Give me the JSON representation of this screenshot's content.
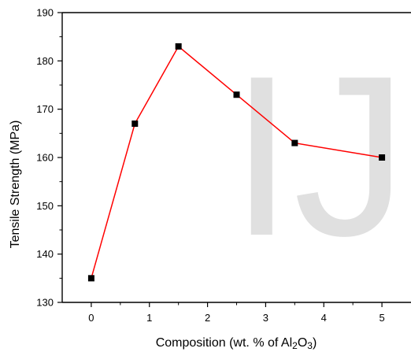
{
  "chart_data": {
    "type": "line",
    "title": "",
    "x_axis": {
      "label_parts": [
        {
          "text": "Composition (wt. % of Al",
          "sub": false
        },
        {
          "text": "2",
          "sub": true
        },
        {
          "text": "O",
          "sub": false
        },
        {
          "text": "3",
          "sub": true
        },
        {
          "text": ")",
          "sub": false
        }
      ],
      "range": [
        -0.5,
        5.5
      ],
      "ticks": [
        "0",
        "1",
        "2",
        "3",
        "4",
        "5"
      ],
      "minor_ticks": [
        0.5,
        1.5,
        2.5,
        3.5,
        4.5
      ]
    },
    "y_axis": {
      "label": "Tensile Strength (MPa)",
      "range": [
        130,
        190
      ],
      "ticks": [
        "130",
        "140",
        "150",
        "160",
        "170",
        "180",
        "190"
      ],
      "minor_ticks": [
        135,
        145,
        155,
        165,
        175,
        185
      ]
    },
    "series": [
      {
        "x": [
          0,
          0.75,
          1.5,
          2.5,
          3.5,
          5
        ],
        "y": [
          135,
          167,
          183,
          173,
          163,
          160
        ],
        "line_color": "#ff0000",
        "marker_color": "#000000",
        "marker": "square"
      }
    ],
    "grid": false,
    "watermark": "IJS"
  }
}
